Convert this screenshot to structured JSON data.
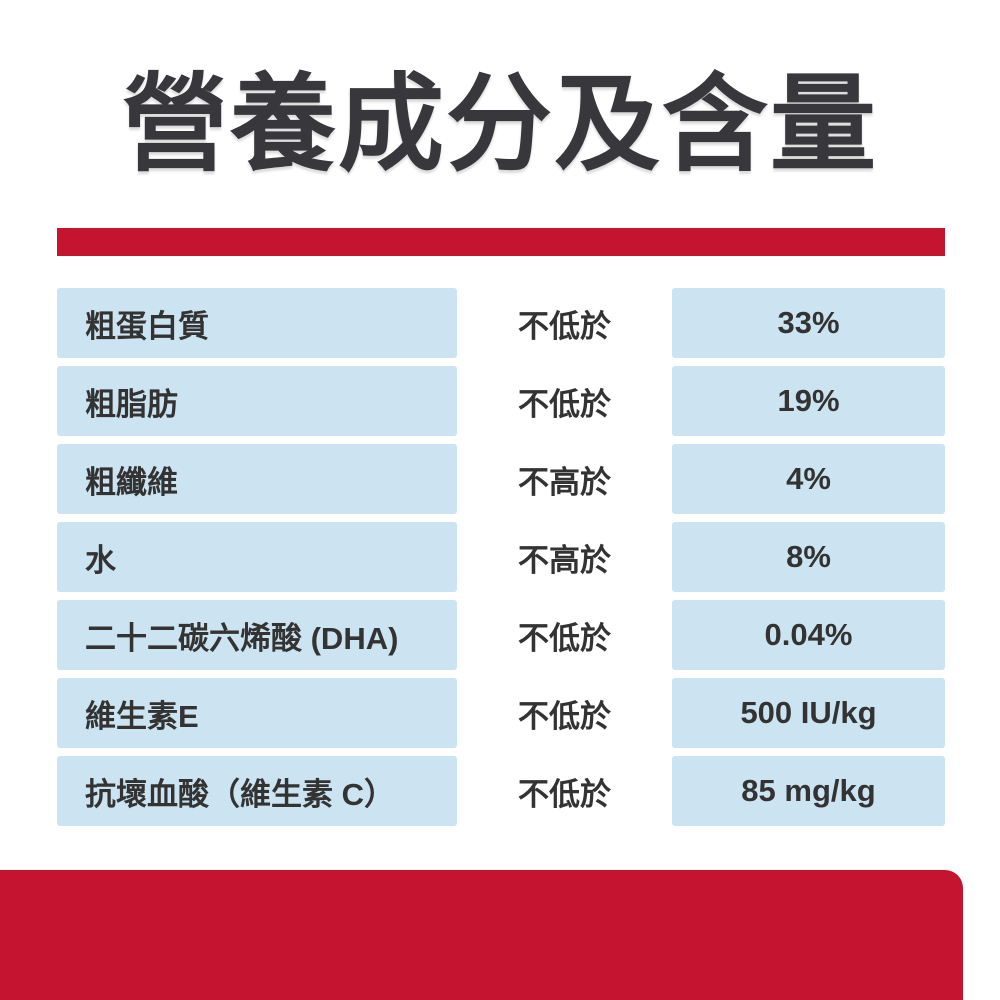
{
  "title": {
    "text": "營養成分及含量"
  },
  "colors": {
    "brand_red": "#c5142f",
    "row_blue": "#cce4f2",
    "text_dark": "#333333",
    "title_dark": "#38383c"
  },
  "table": {
    "rows": [
      {
        "name": "粗蛋白質",
        "condition": "不低於",
        "value": "33%"
      },
      {
        "name": "粗脂肪",
        "condition": "不低於",
        "value": "19%"
      },
      {
        "name": "粗纖維",
        "condition": "不高於",
        "value": "4%"
      },
      {
        "name": "水",
        "condition": "不高於",
        "value": "8%"
      },
      {
        "name": "二十二碳六烯酸 (DHA)",
        "condition": "不低於",
        "value": "0.04%"
      },
      {
        "name": "維生素E",
        "condition": "不低於",
        "value": "500 IU/kg"
      },
      {
        "name": "抗壞血酸（維生素 C）",
        "condition": "不低於",
        "value": "85 mg/kg"
      }
    ]
  }
}
